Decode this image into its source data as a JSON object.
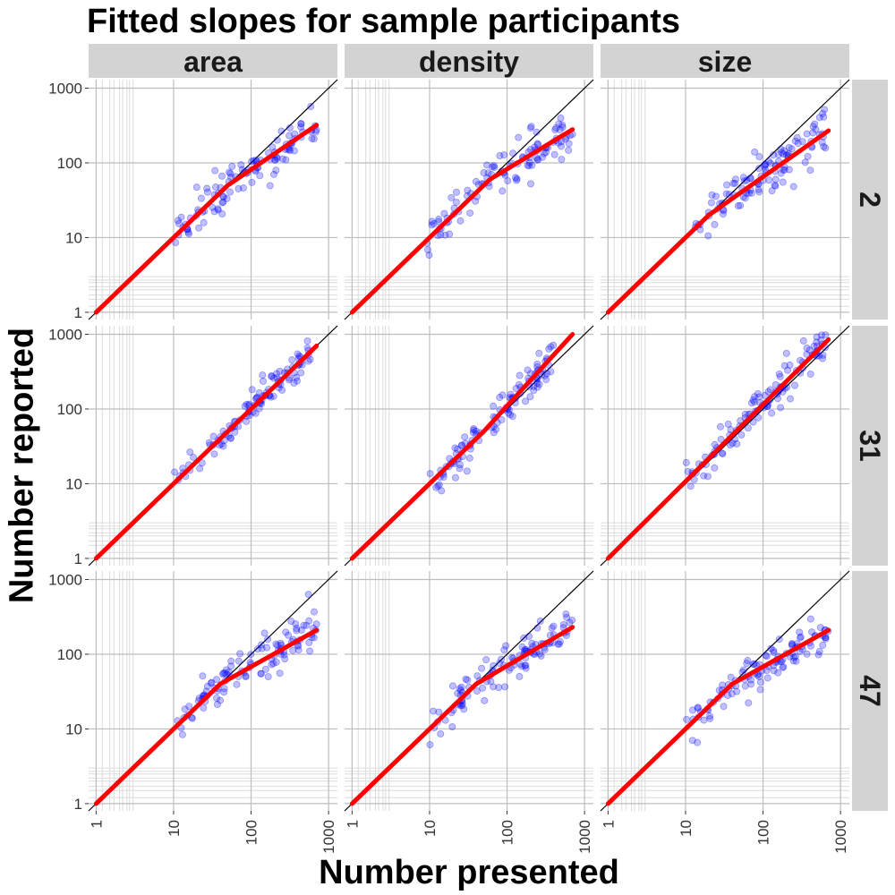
{
  "chart_data": {
    "type": "scatter",
    "title": "Fitted slopes for sample participants",
    "xlabel": "Number presented",
    "ylabel": "Number reported",
    "x_scale": "log10",
    "y_scale": "log10",
    "xlim": [
      0.8,
      1300
    ],
    "ylim": [
      0.8,
      1300
    ],
    "x_ticks": [
      "1",
      "10",
      "100",
      "1000"
    ],
    "y_ticks": [
      "1",
      "10",
      "100",
      "1000"
    ],
    "columns": [
      "area",
      "density",
      "size"
    ],
    "rows": [
      "2",
      "31",
      "47"
    ],
    "reference_line": "y = x",
    "colors": {
      "points": "#0000ff",
      "fit": "#ff0000",
      "strip": "#d3d3d3",
      "grid": "#bdbdbd",
      "reference": "#000000"
    },
    "panels": [
      {
        "row": "2",
        "col": "area",
        "x_range": [
          10,
          700
        ],
        "fit": [
          [
            1,
            1
          ],
          [
            50,
            50
          ],
          [
            700,
            320
          ]
        ],
        "points_y_center": "fit",
        "spread": 0.13
      },
      {
        "row": "2",
        "col": "density",
        "x_range": [
          9,
          700
        ],
        "fit": [
          [
            1,
            1
          ],
          [
            60,
            60
          ],
          [
            700,
            280
          ]
        ],
        "points_y_center": "fit",
        "spread": 0.16
      },
      {
        "row": "2",
        "col": "size",
        "x_range": [
          9,
          700
        ],
        "fit": [
          [
            1,
            1
          ],
          [
            20,
            20
          ],
          [
            700,
            270
          ]
        ],
        "points_y_center": "fit",
        "spread": 0.15
      },
      {
        "row": "31",
        "col": "area",
        "x_range": [
          10,
          600
        ],
        "fit": [
          [
            1,
            1
          ],
          [
            700,
            700
          ]
        ],
        "points_y_center": "fit",
        "spread": 0.11
      },
      {
        "row": "31",
        "col": "density",
        "x_range": [
          10,
          400
        ],
        "fit": [
          [
            1,
            1
          ],
          [
            50,
            50
          ],
          [
            700,
            1000
          ]
        ],
        "points_y_center": "fit",
        "spread": 0.13
      },
      {
        "row": "31",
        "col": "size",
        "x_range": [
          10,
          700
        ],
        "fit": [
          [
            1,
            1
          ],
          [
            700,
            850
          ]
        ],
        "points_y_center": "fit",
        "spread": 0.14
      },
      {
        "row": "47",
        "col": "area",
        "x_range": [
          10,
          700
        ],
        "fit": [
          [
            1,
            1
          ],
          [
            40,
            40
          ],
          [
            700,
            210
          ]
        ],
        "points_y_center": "fit",
        "spread": 0.13
      },
      {
        "row": "47",
        "col": "density",
        "x_range": [
          10,
          700
        ],
        "fit": [
          [
            1,
            1
          ],
          [
            40,
            40
          ],
          [
            700,
            230
          ]
        ],
        "points_y_center": "fit",
        "spread": 0.13
      },
      {
        "row": "47",
        "col": "size",
        "x_range": [
          10,
          700
        ],
        "fit": [
          [
            1,
            1
          ],
          [
            40,
            40
          ],
          [
            700,
            210
          ]
        ],
        "points_y_center": "fit",
        "spread": 0.13
      }
    ]
  }
}
